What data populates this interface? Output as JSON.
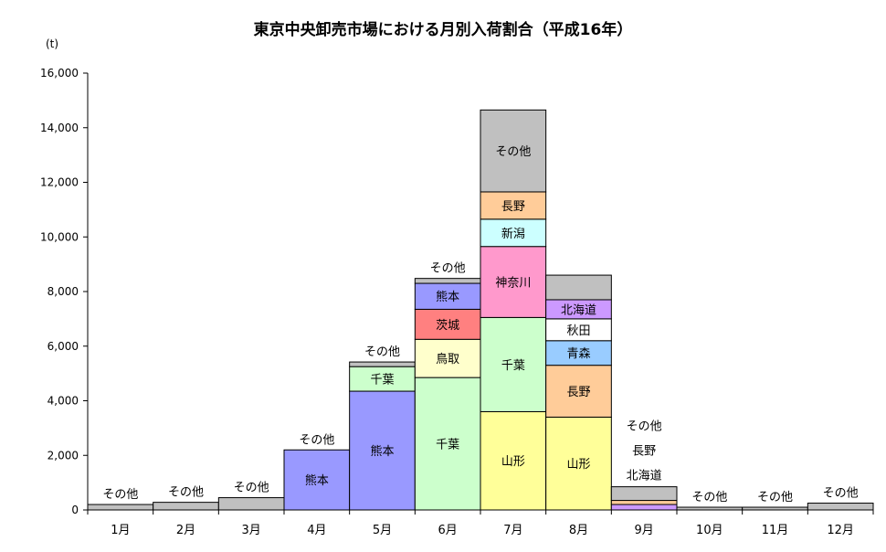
{
  "chart_data": {
    "type": "bar",
    "stacked": true,
    "title": "東京中央卸売市場における月別入荷割合（平成16年）",
    "unit": "(t)",
    "categories": [
      "1月",
      "2月",
      "3月",
      "4月",
      "5月",
      "6月",
      "7月",
      "8月",
      "9月",
      "10月",
      "11月",
      "12月"
    ],
    "y_ticks": [
      "0",
      "2,000",
      "4,000",
      "6,000",
      "8,000",
      "10,000",
      "12,000",
      "14,000",
      "16,000"
    ],
    "ylim": [
      0,
      16000
    ],
    "grid": false,
    "legend": "none",
    "months": [
      {
        "segments": [
          {
            "name": "その他",
            "value": 200,
            "color": "#c0c0c0",
            "label": ""
          }
        ],
        "label_above": "その他"
      },
      {
        "segments": [
          {
            "name": "その他",
            "value": 280,
            "color": "#c0c0c0",
            "label": ""
          }
        ],
        "label_above": "その他"
      },
      {
        "segments": [
          {
            "name": "その他",
            "value": 450,
            "color": "#c0c0c0",
            "label": ""
          }
        ],
        "label_above": "その他"
      },
      {
        "segments": [
          {
            "name": "熊本",
            "value": 2200,
            "color": "#9999ff",
            "label": "熊本"
          }
        ],
        "label_above": "その他"
      },
      {
        "segments": [
          {
            "name": "熊本",
            "value": 4350,
            "color": "#9999ff",
            "label": "熊本"
          },
          {
            "name": "千葉",
            "value": 900,
            "color": "#ccffcc",
            "label": "千葉"
          },
          {
            "name": "その他",
            "value": 170,
            "color": "#c0c0c0",
            "label": ""
          }
        ],
        "label_above": "その他"
      },
      {
        "segments": [
          {
            "name": "千葉",
            "value": 4850,
            "color": "#ccffcc",
            "label": "千葉"
          },
          {
            "name": "鳥取",
            "value": 1400,
            "color": "#ffffcc",
            "label": "鳥取"
          },
          {
            "name": "茨城",
            "value": 1100,
            "color": "#ff8080",
            "label": "茨城"
          },
          {
            "name": "熊本",
            "value": 950,
            "color": "#9999ff",
            "label": "熊本"
          },
          {
            "name": "その他",
            "value": 180,
            "color": "#c0c0c0",
            "label": ""
          }
        ],
        "label_above": "その他"
      },
      {
        "segments": [
          {
            "name": "山形",
            "value": 3600,
            "color": "#ffff99",
            "label": "山形"
          },
          {
            "name": "千葉",
            "value": 3450,
            "color": "#ccffcc",
            "label": "千葉"
          },
          {
            "name": "神奈川",
            "value": 2600,
            "color": "#ff99cc",
            "label": "神奈川"
          },
          {
            "name": "新潟",
            "value": 1000,
            "color": "#ccffff",
            "label": "新潟"
          },
          {
            "name": "長野",
            "value": 1000,
            "color": "#ffcc99",
            "label": "長野"
          },
          {
            "name": "その他",
            "value": 3000,
            "color": "#c0c0c0",
            "label": "その他"
          }
        ],
        "label_above": ""
      },
      {
        "segments": [
          {
            "name": "山形",
            "value": 3400,
            "color": "#ffff99",
            "label": "山形"
          },
          {
            "name": "長野",
            "value": 1900,
            "color": "#ffcc99",
            "label": "長野"
          },
          {
            "name": "青森",
            "value": 900,
            "color": "#99ccff",
            "label": "青森"
          },
          {
            "name": "秋田",
            "value": 800,
            "color": "#ffffff",
            "label": "秋田"
          },
          {
            "name": "北海道",
            "value": 700,
            "color": "#cc99ff",
            "label": "北海道"
          },
          {
            "name": "その他",
            "value": 900,
            "color": "#c0c0c0",
            "label": ""
          }
        ],
        "label_above": ""
      },
      {
        "segments": [
          {
            "name": "北海道",
            "value": 200,
            "color": "#cc99ff",
            "label": ""
          },
          {
            "name": "長野",
            "value": 150,
            "color": "#ffcc99",
            "label": ""
          },
          {
            "name": "その他",
            "value": 500,
            "color": "#c0c0c0",
            "label": ""
          }
        ],
        "label_above": "",
        "side_labels": [
          "その他",
          "長野",
          "北海道"
        ]
      },
      {
        "segments": [
          {
            "name": "その他",
            "value": 100,
            "color": "#c0c0c0",
            "label": ""
          }
        ],
        "label_above": "その他"
      },
      {
        "segments": [
          {
            "name": "その他",
            "value": 100,
            "color": "#c0c0c0",
            "label": ""
          }
        ],
        "label_above": "その他"
      },
      {
        "segments": [
          {
            "name": "その他",
            "value": 250,
            "color": "#c0c0c0",
            "label": ""
          }
        ],
        "label_above": "その他"
      }
    ]
  }
}
